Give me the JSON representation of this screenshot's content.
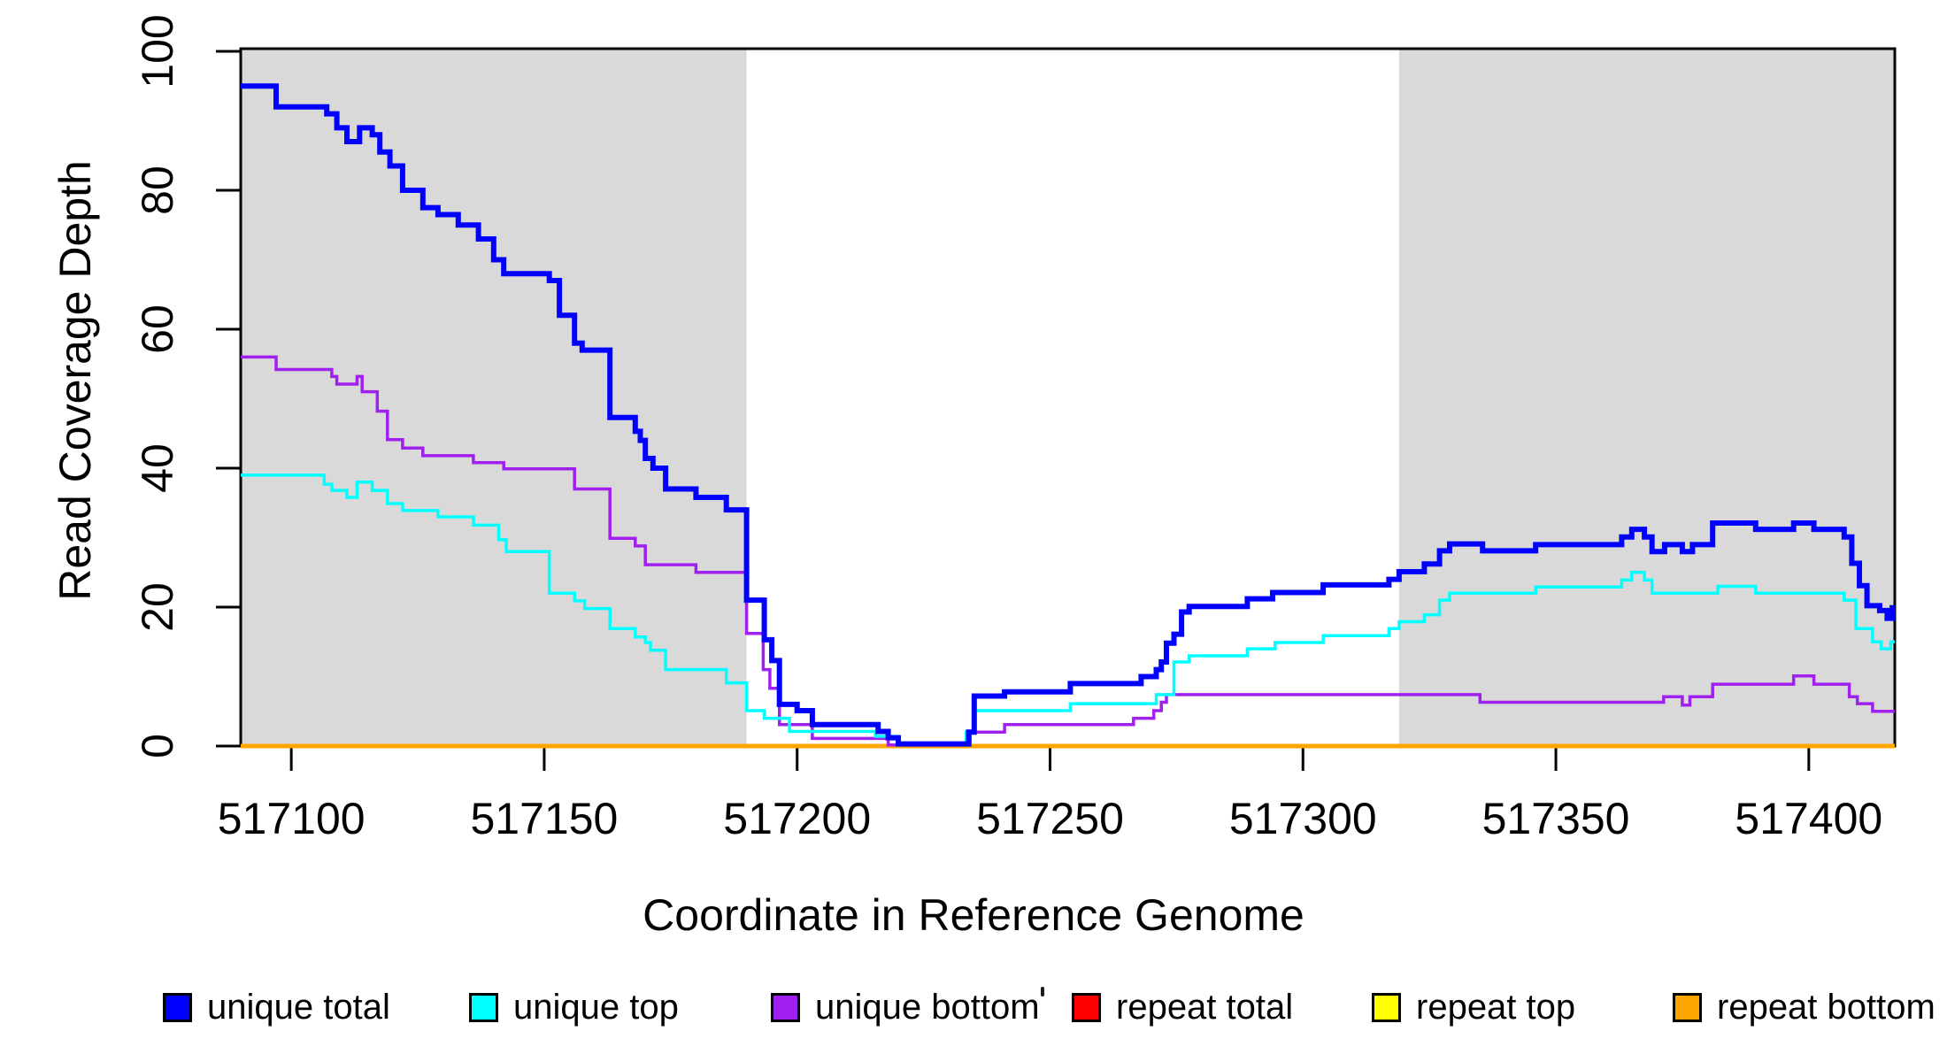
{
  "figure": {
    "background_color": "#ffffff",
    "plot_border_color": "#000000",
    "text_color": "#000000",
    "shaded_band_color": "#D9D9D9"
  },
  "chart_data": {
    "type": "line",
    "subtype": "step-after-coverage-profile",
    "title": "",
    "xlabel": "Coordinate in Reference Genome",
    "ylabel": "Read Coverage Depth",
    "xlim": [
      517090,
      517417
    ],
    "ylim": [
      0,
      100
    ],
    "x_ticks": [
      517100,
      517150,
      517200,
      517250,
      517300,
      517350,
      517400
    ],
    "y_ticks": [
      0,
      20,
      40,
      60,
      80,
      100
    ],
    "grid": false,
    "legend_position": "bottom",
    "shaded_regions": [
      {
        "x0": 517090,
        "x1": 517190,
        "color": "#D9D9D9"
      },
      {
        "x0": 517319,
        "x1": 517417,
        "color": "#D9D9D9"
      }
    ],
    "draw_order": [
      3,
      4,
      5,
      2,
      1,
      0
    ],
    "series": [
      {
        "name": "unique total",
        "color": "#0000FF",
        "line_width": 6,
        "points": [
          [
            517090,
            95
          ],
          [
            517097,
            92
          ],
          [
            517107,
            91
          ],
          [
            517109,
            89
          ],
          [
            517111,
            87
          ],
          [
            517113.5,
            89
          ],
          [
            517116,
            88
          ],
          [
            517117.5,
            85.5
          ],
          [
            517119.5,
            83.5
          ],
          [
            517122,
            80
          ],
          [
            517126,
            77.5
          ],
          [
            517129,
            76.5
          ],
          [
            517133,
            75
          ],
          [
            517137,
            73
          ],
          [
            517140,
            70
          ],
          [
            517142,
            68
          ],
          [
            517151,
            67
          ],
          [
            517153,
            62
          ],
          [
            517156,
            58
          ],
          [
            517157.5,
            57
          ],
          [
            517163,
            47.3
          ],
          [
            517168,
            45.3
          ],
          [
            517169,
            44
          ],
          [
            517170,
            41.4
          ],
          [
            517171.5,
            40
          ],
          [
            517174,
            37
          ],
          [
            517180,
            35.8
          ],
          [
            517186,
            34
          ],
          [
            517190,
            21
          ],
          [
            517193.5,
            15.3
          ],
          [
            517195,
            12.3
          ],
          [
            517196.5,
            6
          ],
          [
            517200,
            5.1
          ],
          [
            517203,
            3.1
          ],
          [
            517216,
            2.1
          ],
          [
            517218,
            1.2
          ],
          [
            517220,
            0.3
          ],
          [
            517233.9,
            2
          ],
          [
            517235,
            7.2
          ],
          [
            517241,
            7.8
          ],
          [
            517254,
            9
          ],
          [
            517268,
            10
          ],
          [
            517271,
            11
          ],
          [
            517272,
            12.1
          ],
          [
            517273,
            14.8
          ],
          [
            517274.5,
            16.1
          ],
          [
            517276,
            19.3
          ],
          [
            517277.5,
            20.1
          ],
          [
            517289,
            21.2
          ],
          [
            517294,
            22.1
          ],
          [
            517304,
            23.2
          ],
          [
            517317,
            24
          ],
          [
            517319,
            25.1
          ],
          [
            517324,
            26.2
          ],
          [
            517327,
            28.1
          ],
          [
            517329,
            29.1
          ],
          [
            517335.5,
            28.1
          ],
          [
            517346,
            29
          ],
          [
            517363,
            30.1
          ],
          [
            517365,
            31.2
          ],
          [
            517367.5,
            30.1
          ],
          [
            517369,
            28
          ],
          [
            517371.5,
            29
          ],
          [
            517375,
            28
          ],
          [
            517377,
            29
          ],
          [
            517381,
            32.1
          ],
          [
            517389.5,
            31.2
          ],
          [
            517397,
            32.1
          ],
          [
            517401,
            31.2
          ],
          [
            517407,
            30.1
          ],
          [
            517408.5,
            26.3
          ],
          [
            517410,
            23.1
          ],
          [
            517411.5,
            20.2
          ],
          [
            517414,
            19.5
          ],
          [
            517415.5,
            18.4
          ],
          [
            517416.5,
            19.9
          ],
          [
            517417,
            19.9
          ]
        ]
      },
      {
        "name": "unique top",
        "color": "#00FFFF",
        "line_width": 3.5,
        "points": [
          [
            517090,
            39
          ],
          [
            517106.5,
            37.7
          ],
          [
            517108,
            36.8
          ],
          [
            517111,
            35.8
          ],
          [
            517113,
            38
          ],
          [
            517116,
            36.8
          ],
          [
            517119,
            34.9
          ],
          [
            517122,
            33.9
          ],
          [
            517129,
            33
          ],
          [
            517136,
            31.8
          ],
          [
            517141,
            29.7
          ],
          [
            517142.5,
            28
          ],
          [
            517151,
            22
          ],
          [
            517156,
            20.9
          ],
          [
            517158,
            19.8
          ],
          [
            517163,
            16.9
          ],
          [
            517168,
            15.7
          ],
          [
            517170,
            14.9
          ],
          [
            517171,
            13.8
          ],
          [
            517174,
            11
          ],
          [
            517186,
            9.1
          ],
          [
            517190,
            5.1
          ],
          [
            517193.5,
            4
          ],
          [
            517198.5,
            2.1
          ],
          [
            517215.5,
            1.4
          ],
          [
            517220,
            0.2
          ],
          [
            517233.4,
            2
          ],
          [
            517235,
            5.1
          ],
          [
            517254,
            6.1
          ],
          [
            517271,
            7.4
          ],
          [
            517274.5,
            12.1
          ],
          [
            517277.5,
            13
          ],
          [
            517289,
            14
          ],
          [
            517294.5,
            14.9
          ],
          [
            517304,
            15.9
          ],
          [
            517317,
            16.9
          ],
          [
            517319,
            17.9
          ],
          [
            517324,
            18.9
          ],
          [
            517327,
            21
          ],
          [
            517329,
            22
          ],
          [
            517346,
            22.9
          ],
          [
            517363,
            23.9
          ],
          [
            517365,
            25
          ],
          [
            517367.5,
            23.9
          ],
          [
            517369,
            22
          ],
          [
            517382,
            23
          ],
          [
            517389.5,
            22
          ],
          [
            517407,
            21
          ],
          [
            517409.3,
            16.9
          ],
          [
            517412.6,
            15
          ],
          [
            517414.3,
            14
          ],
          [
            517416.2,
            15
          ],
          [
            517417,
            15
          ]
        ]
      },
      {
        "name": "unique bottom",
        "color": "#A020F0",
        "line_width": 3.5,
        "points": [
          [
            517090,
            56
          ],
          [
            517097,
            54.2
          ],
          [
            517108,
            53.2
          ],
          [
            517109,
            52.1
          ],
          [
            517113,
            53.2
          ],
          [
            517114,
            51
          ],
          [
            517117,
            48.2
          ],
          [
            517119,
            44.1
          ],
          [
            517122,
            42.9
          ],
          [
            517126,
            41.8
          ],
          [
            517136,
            40.8
          ],
          [
            517142,
            39.9
          ],
          [
            517156,
            37
          ],
          [
            517163,
            29.9
          ],
          [
            517168,
            28.8
          ],
          [
            517170,
            26.1
          ],
          [
            517180,
            25
          ],
          [
            517190,
            16.2
          ],
          [
            517193.3,
            11
          ],
          [
            517194.6,
            8.3
          ],
          [
            517196.5,
            3.1
          ],
          [
            517203,
            1.1
          ],
          [
            517218,
            0.15
          ],
          [
            517234.2,
            2
          ],
          [
            517241,
            3.1
          ],
          [
            517266.5,
            4
          ],
          [
            517270.5,
            5.1
          ],
          [
            517272,
            6.3
          ],
          [
            517273,
            7.4
          ],
          [
            517335,
            6.3
          ],
          [
            517371.3,
            7.1
          ],
          [
            517375,
            5.9
          ],
          [
            517376.5,
            7.1
          ],
          [
            517381,
            8.9
          ],
          [
            517397,
            10.1
          ],
          [
            517401,
            8.9
          ],
          [
            517408,
            7.1
          ],
          [
            517409.6,
            6.1
          ],
          [
            517412.6,
            5
          ],
          [
            517417,
            5
          ]
        ]
      },
      {
        "name": "repeat total",
        "color": "#FF0000",
        "line_width": 3.5,
        "points": [
          [
            517090,
            0
          ],
          [
            517417,
            0
          ]
        ]
      },
      {
        "name": "repeat top",
        "color": "#FFFF00",
        "line_width": 3.5,
        "points": [
          [
            517090,
            0
          ],
          [
            517417,
            0
          ]
        ]
      },
      {
        "name": "repeat bottom",
        "color": "#FFA500",
        "line_width": 5,
        "points": [
          [
            517090,
            0
          ],
          [
            517417,
            0
          ]
        ]
      }
    ]
  }
}
